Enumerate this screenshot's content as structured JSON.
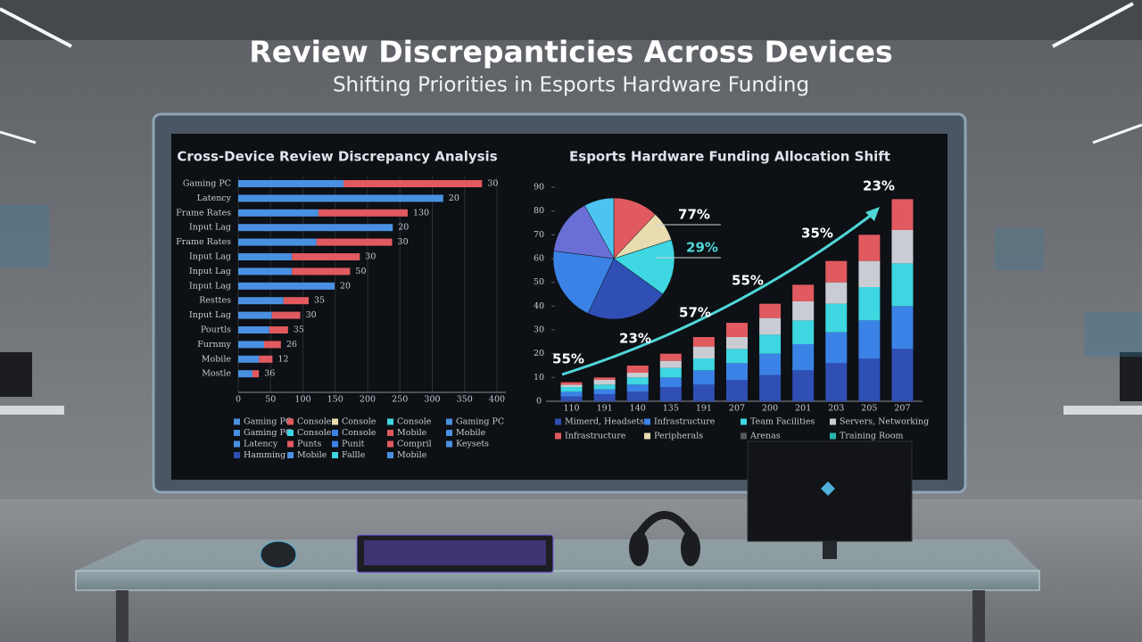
{
  "header": {
    "title": "Review Discrepanticies Across Devices",
    "subtitle": "Shifting Priorities in Esports Hardware Funding"
  },
  "chart_data": [
    {
      "type": "hbar",
      "title": "Cross-Device Review Discrepancy Analysis",
      "categories": [
        "Gaming PC",
        "Latency",
        "Frame Rates",
        "Input Lag",
        "Frame Rates",
        "Input Lag",
        "Input Lag",
        "Input Lag",
        "Resttes",
        "Input Lag",
        "Pourtls",
        "Furnmy",
        "Mobile",
        "Mostle"
      ],
      "series": [
        {
          "name": "Gaming PC",
          "color": "#4a90e2",
          "values": [
            163,
            317,
            124,
            239,
            121,
            83,
            83,
            149,
            70,
            52,
            48,
            40,
            32,
            22
          ]
        },
        {
          "name": "Console",
          "color": "#e05a5f",
          "values": [
            214,
            0,
            138,
            0,
            117,
            105,
            90,
            0,
            39,
            44,
            29,
            26,
            21,
            10
          ]
        }
      ],
      "end_labels": [
        "30",
        "20",
        "130",
        "20",
        "30",
        "30",
        "50",
        "20",
        "35",
        "30",
        "35",
        "26",
        "12",
        "36"
      ],
      "xlim": [
        0,
        400
      ],
      "xticks": [
        0,
        50,
        100,
        150,
        200,
        250,
        300,
        350,
        400
      ],
      "grid": true,
      "legend_items": [
        {
          "label": "Console",
          "color": "#e8dcb0"
        },
        {
          "label": "Console",
          "color": "#3ed6e0"
        },
        {
          "label": "Gaming PC",
          "color": "#4a90e2"
        },
        {
          "label": "Gaming PC",
          "color": "#4a90e2"
        },
        {
          "label": "Console",
          "color": "#3ed6e0"
        },
        {
          "label": "Console",
          "color": "#3b82e6"
        },
        {
          "label": "Mobile",
          "color": "#e05a5f"
        },
        {
          "label": "Mobile",
          "color": "#4a90e2"
        },
        {
          "label": "Latency",
          "color": "#4a90e2"
        },
        {
          "label": "Punts",
          "color": "#e05a5f"
        },
        {
          "label": "Punit",
          "color": "#3b82e6"
        },
        {
          "label": "Compril",
          "color": "#e05a5f"
        },
        {
          "label": "Keysets",
          "color": "#4a90e2"
        },
        {
          "label": "Hamming",
          "color": "#2f4fb5"
        },
        {
          "label": "Mobile",
          "color": "#4a90e2"
        },
        {
          "label": "Fallle",
          "color": "#3ed6e0"
        },
        {
          "label": "Mobile",
          "color": "#4a90e2"
        }
      ]
    },
    {
      "type": "pie",
      "title": "Esports Hardware Funding Allocation Shift",
      "values": [
        12,
        8,
        15,
        22,
        20,
        15,
        8
      ],
      "colors": [
        "#e05a5f",
        "#e8dcb0",
        "#3ed6e0",
        "#2f4fb5",
        "#3b82e6",
        "#6a6fd6",
        "#4cc3f0"
      ],
      "annotations": [
        "77%",
        "29%"
      ]
    },
    {
      "type": "stacked-bar",
      "categories": [
        "110",
        "191",
        "140",
        "135",
        "191",
        "207",
        "200",
        "201",
        "203",
        "205",
        "207"
      ],
      "series": [
        {
          "name": "Mimerd, Headsets",
          "color": "#2f4fb5",
          "values": [
            2,
            3,
            4,
            6,
            7,
            9,
            11,
            13,
            16,
            18,
            22
          ]
        },
        {
          "name": "Infrastructure",
          "color": "#3b82e6",
          "values": [
            2,
            2,
            3,
            4,
            6,
            7,
            9,
            11,
            13,
            16,
            18
          ]
        },
        {
          "name": "Team Facilities",
          "color": "#3ed6e0",
          "values": [
            2,
            2,
            3,
            4,
            5,
            6,
            8,
            10,
            12,
            14,
            18
          ]
        },
        {
          "name": "Servers, Networking",
          "color": "#c9ccd3",
          "values": [
            1,
            2,
            2,
            3,
            5,
            5,
            7,
            8,
            9,
            11,
            14
          ]
        },
        {
          "name": "Infrastructure",
          "color": "#e05a5f",
          "values": [
            1,
            1,
            3,
            3,
            4,
            6,
            6,
            7,
            9,
            11,
            13
          ]
        }
      ],
      "ylim": [
        0,
        90
      ],
      "yticks": [
        0,
        10,
        20,
        30,
        40,
        50,
        60,
        70,
        80,
        90
      ],
      "annotations": [
        "55%",
        "23%",
        "57%",
        "55%",
        "35%",
        "23%"
      ],
      "legend_items": [
        {
          "label": "Peripherals",
          "color": "#e8dcb0"
        },
        {
          "label": "Arenas",
          "color": "#55585e"
        },
        {
          "label": "Training Room",
          "color": "#2bb5b0"
        }
      ]
    }
  ]
}
